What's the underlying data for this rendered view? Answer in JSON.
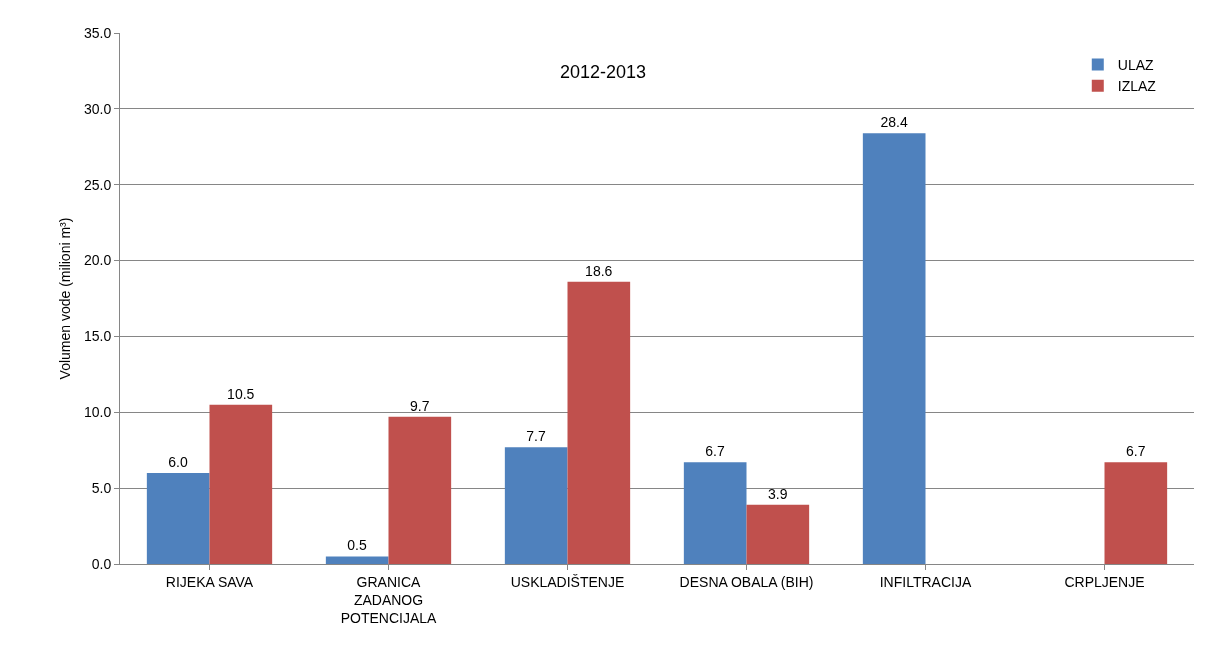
{
  "chart_data": {
    "type": "bar",
    "title": "2012-2013",
    "ylabel": "Volumen vode (milioni m³)",
    "categories": [
      "RIJEKA SAVA",
      "GRANICA ZADANOG POTENCIJALA",
      "USKLADIŠTENJE",
      "DESNA OBALA (BIH)",
      "INFILTRACIJA",
      "CRPLJENJE"
    ],
    "series": [
      {
        "name": "ULAZ",
        "color": "#4f81bd",
        "values": [
          6.0,
          0.5,
          7.7,
          6.7,
          28.4,
          null
        ],
        "value_labels": [
          "6.0",
          "0.5",
          "7.7",
          "6.7",
          "28.4",
          null
        ]
      },
      {
        "name": "IZLAZ",
        "color": "#c0504d",
        "values": [
          10.5,
          9.7,
          18.6,
          3.9,
          null,
          6.7
        ],
        "value_labels": [
          "10.5",
          "9.7",
          "18.6",
          "3.9",
          null,
          "6.7"
        ]
      }
    ],
    "ylim": [
      0,
      35
    ],
    "yticks": [
      {
        "value": 0,
        "label": "0.0"
      },
      {
        "value": 5,
        "label": "5.0"
      },
      {
        "value": 10,
        "label": "10.0"
      },
      {
        "value": 15,
        "label": "15.0"
      },
      {
        "value": 20,
        "label": "20.0"
      },
      {
        "value": 25,
        "label": "25.0"
      },
      {
        "value": 30,
        "label": "30.0"
      },
      {
        "value": 35,
        "label": "35.0"
      }
    ],
    "grid": "y",
    "legend": "top right"
  }
}
